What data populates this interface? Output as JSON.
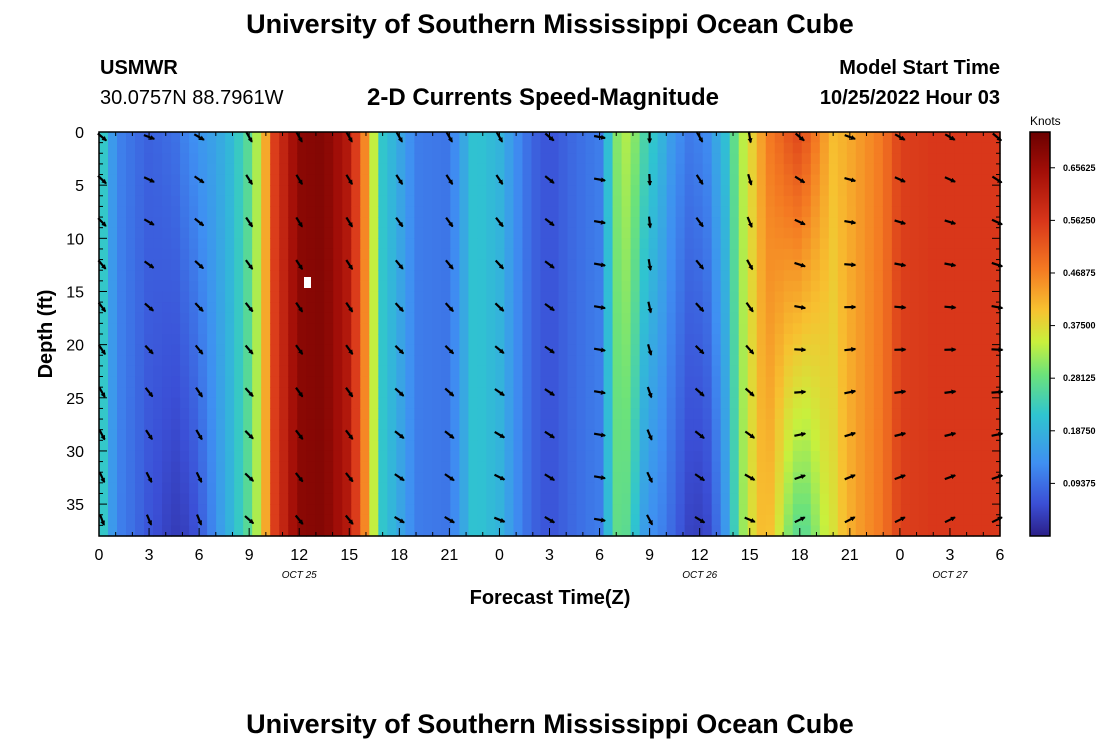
{
  "header": {
    "title": "University of Southern Mississippi Ocean Cube",
    "station": "USMWR",
    "coords": "30.0757N  88.7961W",
    "subtitle": "2-D Currents Speed-Magnitude",
    "model_label": "Model Start Time",
    "model_time": "10/25/2022 Hour 03"
  },
  "footer": {
    "title": "University of Southern Mississippi Ocean Cube"
  },
  "chart_data": {
    "type": "heatmap",
    "title": "2-D Currents Speed-Magnitude",
    "xlabel": "Forecast Time(Z)",
    "ylabel": "Depth (ft)",
    "x_ticks": [
      "0",
      "3",
      "6",
      "9",
      "12",
      "15",
      "18",
      "21",
      "0",
      "3",
      "6",
      "9",
      "12",
      "15",
      "18",
      "21",
      "0",
      "3",
      "6"
    ],
    "date_labels": [
      {
        "label": "OCT 25",
        "at_tick": 4
      },
      {
        "label": "OCT 26",
        "at_tick": 12
      },
      {
        "label": "OCT 27",
        "at_tick": 17
      }
    ],
    "y_ticks": [
      0,
      5,
      10,
      15,
      20,
      25,
      30,
      35
    ],
    "ylim": [
      0,
      38
    ],
    "colorbar": {
      "unit": "Knots",
      "ticks": [
        "0.65625",
        "0.56250",
        "0.46875",
        "0.37500",
        "0.28125",
        "0.18750",
        "0.09375"
      ],
      "tick_values": [
        0.65625,
        0.5625,
        0.46875,
        0.375,
        0.28125,
        0.1875,
        0.09375
      ],
      "range": [
        0,
        0.72
      ]
    },
    "speed_profile_knots": [
      [
        0,
        0.26
      ],
      [
        1,
        0.12
      ],
      [
        3,
        0.07
      ],
      [
        4.5,
        0.06
      ],
      [
        5.5,
        0.08
      ],
      [
        6.5,
        0.12
      ],
      [
        8,
        0.2
      ],
      [
        9,
        0.27
      ],
      [
        9.7,
        0.36
      ],
      [
        10.5,
        0.55
      ],
      [
        12,
        0.68
      ],
      [
        13.5,
        0.69
      ],
      [
        15,
        0.62
      ],
      [
        16,
        0.45
      ],
      [
        17,
        0.22
      ],
      [
        18,
        0.17
      ],
      [
        19,
        0.11
      ],
      [
        21,
        0.1
      ],
      [
        22.5,
        0.22
      ],
      [
        24,
        0.19
      ],
      [
        25,
        0.13
      ],
      [
        26,
        0.08
      ],
      [
        27,
        0.06
      ],
      [
        28.5,
        0.09
      ],
      [
        30,
        0.11
      ],
      [
        31,
        0.3
      ],
      [
        31.8,
        0.34
      ],
      [
        32.5,
        0.26
      ],
      [
        33.5,
        0.2
      ],
      [
        34.5,
        0.12
      ],
      [
        35.5,
        0.08
      ],
      [
        36.5,
        0.1
      ],
      [
        37.5,
        0.18
      ],
      [
        38.5,
        0.32
      ],
      [
        40,
        0.46
      ],
      [
        42,
        0.49
      ],
      [
        44,
        0.4
      ],
      [
        45.5,
        0.44
      ],
      [
        47,
        0.48
      ],
      [
        48,
        0.55
      ],
      [
        50,
        0.56
      ]
    ],
    "depth_factor": [
      {
        "hour": 5,
        "surface": 1.6,
        "bottom": 0.55
      },
      {
        "hour": 33,
        "surface": 1.0,
        "bottom": 0.6
      },
      {
        "hour": 36,
        "surface": 1.3,
        "bottom": 0.45
      },
      {
        "hour": 42,
        "surface": 1.1,
        "bottom": 0.55
      }
    ],
    "vector_depths_ft": [
      0,
      4,
      8,
      12,
      16,
      20,
      24,
      28,
      32,
      36
    ],
    "vector_hours": [
      0,
      3,
      6,
      9,
      12,
      15,
      18,
      21,
      24,
      27,
      30,
      33,
      36,
      39,
      42,
      45,
      48,
      51,
      54
    ],
    "vector_dir_deg_by_hour": [
      130,
      110,
      120,
      150,
      150,
      150,
      150,
      150,
      150,
      130,
      100,
      180,
      150,
      170,
      130,
      110,
      120,
      120,
      130
    ],
    "vector_dir_deg_bottom_by_hour": [
      160,
      160,
      160,
      130,
      140,
      140,
      120,
      120,
      110,
      120,
      100,
      150,
      120,
      110,
      60,
      60,
      60,
      60,
      60
    ]
  }
}
